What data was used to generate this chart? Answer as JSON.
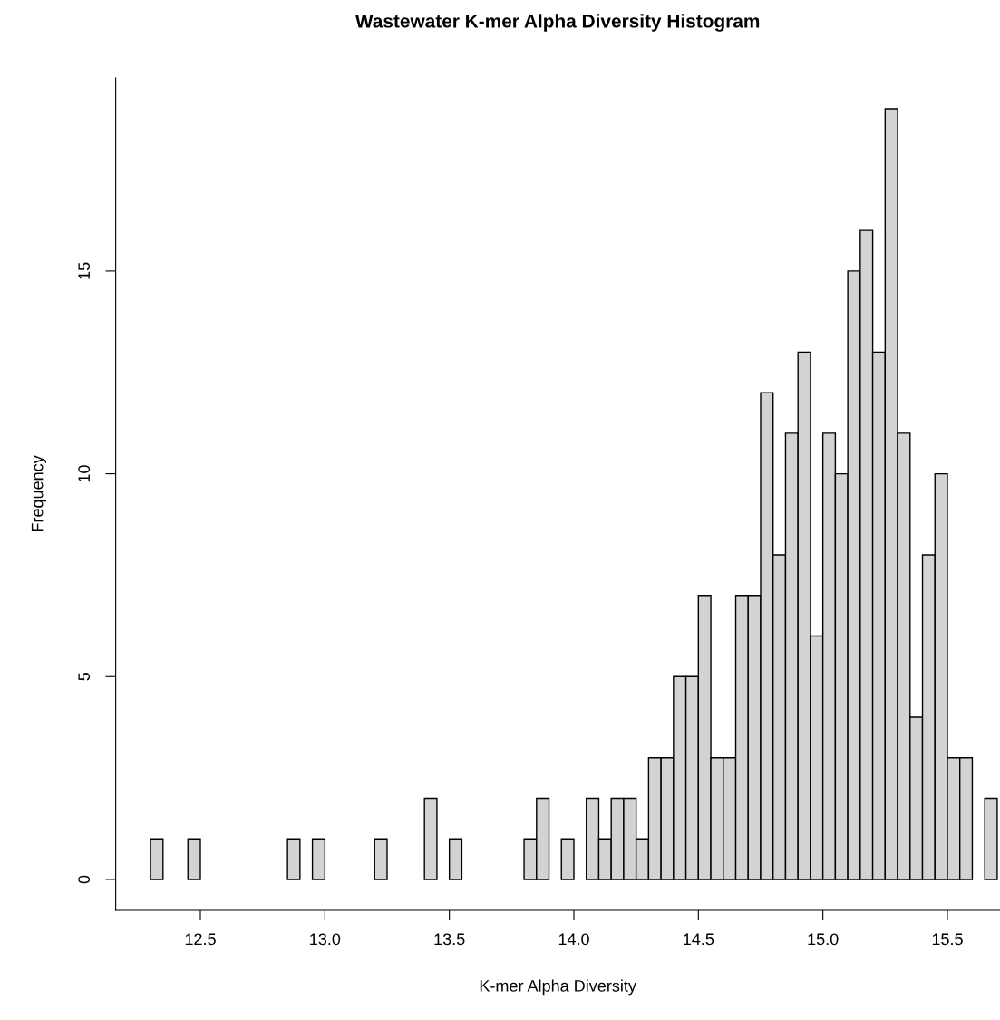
{
  "chart_data": {
    "type": "histogram",
    "title": "Wastewater K-mer Alpha Diversity Histogram",
    "xlabel": "K-mer Alpha Diversity",
    "ylabel": "Frequency",
    "bins": [
      12.3,
      12.35,
      12.4,
      12.45,
      12.5,
      12.55,
      12.6,
      12.65,
      12.7,
      12.75,
      12.8,
      12.85,
      12.9,
      12.95,
      13.0,
      13.05,
      13.1,
      13.15,
      13.2,
      13.25,
      13.3,
      13.35,
      13.4,
      13.45,
      13.5,
      13.55,
      13.6,
      13.65,
      13.7,
      13.75,
      13.8,
      13.85,
      13.9,
      13.95,
      14.0,
      14.05,
      14.1,
      14.15,
      14.2,
      14.25,
      14.3,
      14.35,
      14.4,
      14.45,
      14.5,
      14.55,
      14.6,
      14.65,
      14.7,
      14.75,
      14.8,
      14.85,
      14.9,
      14.95,
      15.0,
      15.05,
      15.1,
      15.15,
      15.2,
      15.25,
      15.3,
      15.35,
      15.4,
      15.45,
      15.5,
      15.55,
      15.6,
      15.65,
      15.7
    ],
    "values": [
      1,
      0,
      0,
      1,
      0,
      0,
      0,
      0,
      0,
      0,
      0,
      1,
      0,
      1,
      0,
      0,
      0,
      0,
      1,
      0,
      0,
      0,
      2,
      0,
      1,
      0,
      0,
      0,
      0,
      0,
      1,
      2,
      0,
      1,
      0,
      2,
      1,
      2,
      2,
      1,
      3,
      3,
      5,
      5,
      7,
      3,
      3,
      7,
      7,
      12,
      8,
      11,
      13,
      6,
      11,
      10,
      15,
      16,
      13,
      19,
      11,
      4,
      8,
      10,
      3,
      3,
      0,
      2
    ],
    "color": "#d3d3d3",
    "xlim": [
      12.16,
      15.71
    ],
    "ylim": [
      -0.76,
      19.76
    ],
    "xticks": [
      {
        "value": 12.5,
        "label": "12.5"
      },
      {
        "value": 13.0,
        "label": "13.0"
      },
      {
        "value": 13.5,
        "label": "13.5"
      },
      {
        "value": 14.0,
        "label": "14.0"
      },
      {
        "value": 14.5,
        "label": "14.5"
      },
      {
        "value": 15.0,
        "label": "15.0"
      },
      {
        "value": 15.5,
        "label": "15.5"
      }
    ],
    "yticks": [
      0,
      5,
      10,
      15
    ],
    "grid": false
  }
}
